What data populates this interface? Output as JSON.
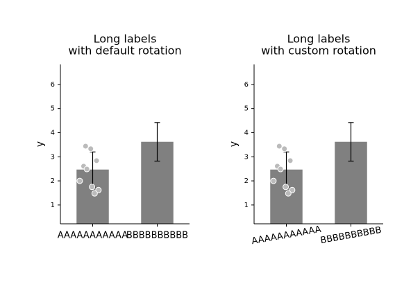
{
  "chart_data": [
    {
      "type": "bar",
      "title": [
        "Long labels",
        "with default rotation"
      ],
      "ylabel": "y",
      "categories": [
        "AAAAAAAAAAA",
        "BBBBBBBBBB"
      ],
      "values": [
        2.47,
        3.62
      ],
      "errors": [
        0.73,
        0.8
      ],
      "color": "#808080",
      "xtick_rotation": 0,
      "points": {
        "color": "#bbbbbb",
        "x": [
          -0.11,
          -0.03,
          0.06,
          -0.14,
          -0.09,
          -0.2,
          -0.01,
          0.09,
          0.03
        ],
        "y": [
          3.44,
          3.33,
          2.84,
          2.61,
          2.49,
          2.0,
          1.75,
          1.62,
          1.48
        ]
      },
      "ylim": [
        0.22,
        6.83
      ],
      "yticks": [
        1,
        2,
        3,
        4,
        5,
        6
      ],
      "xlim": [
        -0.5,
        1.5
      ]
    },
    {
      "type": "bar",
      "title": [
        "Long labels",
        "with custom rotation"
      ],
      "ylabel": "y",
      "categories": [
        "AAAAAAAAAAA",
        "BBBBBBBBBB"
      ],
      "values": [
        2.47,
        3.62
      ],
      "errors": [
        0.73,
        0.8
      ],
      "color": "#808080",
      "xtick_rotation": 10,
      "points": {
        "color": "#bbbbbb",
        "x": [
          -0.11,
          -0.03,
          0.06,
          -0.14,
          -0.09,
          -0.2,
          -0.01,
          0.09,
          0.03
        ],
        "y": [
          3.44,
          3.33,
          2.84,
          2.61,
          2.49,
          2.0,
          1.75,
          1.62,
          1.48
        ]
      },
      "ylim": [
        0.22,
        6.83
      ],
      "yticks": [
        1,
        2,
        3,
        4,
        5,
        6
      ],
      "xlim": [
        -0.5,
        1.5
      ]
    }
  ]
}
